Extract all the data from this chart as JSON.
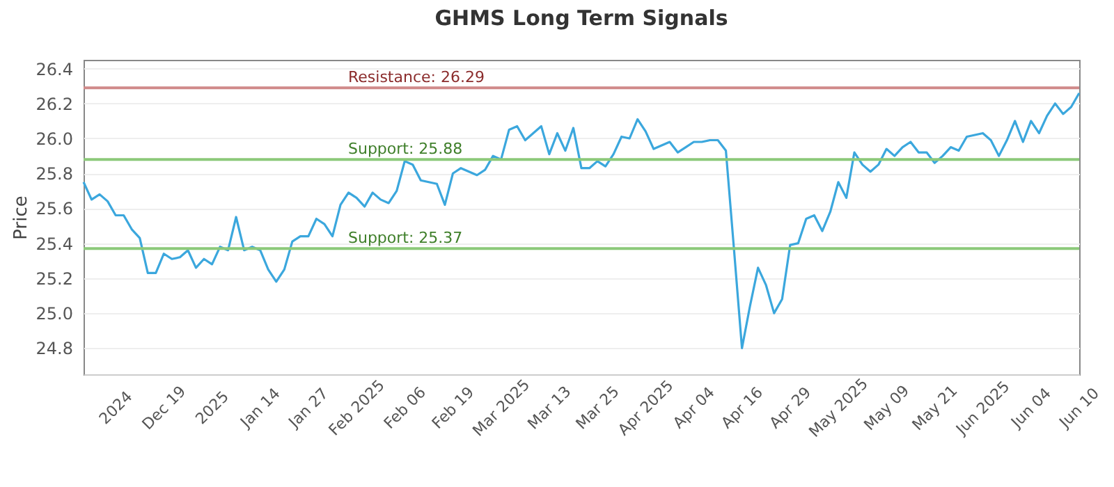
{
  "chart_data": {
    "type": "line",
    "title": "GHMS Long Term Signals",
    "ylabel": "Price",
    "categories": [
      null,
      null,
      null,
      null,
      "2024",
      null,
      null,
      null,
      null,
      null,
      "Dec 19",
      null,
      null,
      null,
      null,
      null,
      "2025",
      null,
      null,
      null,
      null,
      null,
      "Jan 14",
      null,
      null,
      null,
      null,
      null,
      "Jan 27",
      null,
      null,
      null,
      null,
      null,
      "Feb 2025",
      null,
      null,
      null,
      null,
      null,
      "Feb 06",
      null,
      null,
      null,
      null,
      null,
      "Feb 19",
      null,
      null,
      null,
      null,
      null,
      "Mar 2025",
      null,
      null,
      null,
      null,
      null,
      "Mar 13",
      null,
      null,
      null,
      null,
      null,
      "Mar 25",
      null,
      null,
      null,
      null,
      null,
      "Apr 2025",
      null,
      null,
      null,
      null,
      null,
      "Apr 04",
      null,
      null,
      null,
      null,
      null,
      "Apr 16",
      null,
      null,
      null,
      null,
      null,
      "Apr 29",
      null,
      null,
      null,
      null,
      null,
      "May 2025",
      null,
      null,
      null,
      null,
      null,
      "May 09",
      null,
      null,
      null,
      null,
      null,
      "May 21",
      null,
      null,
      null,
      null,
      null,
      "Jun 2025",
      null,
      null,
      null,
      null,
      null,
      "Jun 04",
      null,
      null,
      null,
      null,
      null,
      "Jun 10"
    ],
    "series": [
      {
        "color": "#3ba7dd",
        "values": [
          25.75,
          25.65,
          25.68,
          25.64,
          25.56,
          25.56,
          25.48,
          25.43,
          25.23,
          25.23,
          25.34,
          25.31,
          25.32,
          25.36,
          25.26,
          25.31,
          25.28,
          25.38,
          25.36,
          25.55,
          25.36,
          25.38,
          25.36,
          25.25,
          25.18,
          25.25,
          25.41,
          25.44,
          25.44,
          25.54,
          25.51,
          25.44,
          25.62,
          25.69,
          25.66,
          25.61,
          25.69,
          25.65,
          25.63,
          25.7,
          25.87,
          25.85,
          25.76,
          25.75,
          25.74,
          25.62,
          25.8,
          25.83,
          25.81,
          25.79,
          25.82,
          25.9,
          25.88,
          26.05,
          26.07,
          25.99,
          26.03,
          26.07,
          25.91,
          26.03,
          25.93,
          26.06,
          25.83,
          25.83,
          25.87,
          25.84,
          25.91,
          26.01,
          26.0,
          26.11,
          26.04,
          25.94,
          25.96,
          25.98,
          25.92,
          25.95,
          25.98,
          25.98,
          25.99,
          25.99,
          25.93,
          25.37,
          24.8,
          25.04,
          25.26,
          25.16,
          25.0,
          25.08,
          25.39,
          25.4,
          25.54,
          25.56,
          25.47,
          25.58,
          25.75,
          25.66,
          25.92,
          25.85,
          25.81,
          25.85,
          25.94,
          25.9,
          25.95,
          25.98,
          25.92,
          25.92,
          25.86,
          25.9,
          25.95,
          25.93,
          26.01,
          26.02,
          26.03,
          25.99,
          25.9,
          25.99,
          26.1,
          25.98,
          26.1,
          26.03,
          26.13,
          26.2,
          26.14,
          26.18,
          26.26
        ]
      }
    ],
    "ylim": [
      24.65,
      26.45
    ],
    "yticks": [
      24.8,
      {
        "value": 25,
        "label": "25.0"
      },
      25.2,
      25.4,
      25.6,
      25.8,
      {
        "value": 26,
        "label": "26.0"
      },
      26.2,
      26.4
    ],
    "grid": "y",
    "ref_lines": [
      {
        "axis": "y",
        "value": 26.29,
        "label": "Resistance: 26.29",
        "color": "#d08a8a"
      },
      {
        "axis": "y",
        "value": 25.88,
        "label": "Support: 25.88",
        "color": "#8cc97a"
      },
      {
        "axis": "y",
        "value": 25.37,
        "label": "Support: 25.37",
        "color": "#8cc97a"
      }
    ]
  }
}
